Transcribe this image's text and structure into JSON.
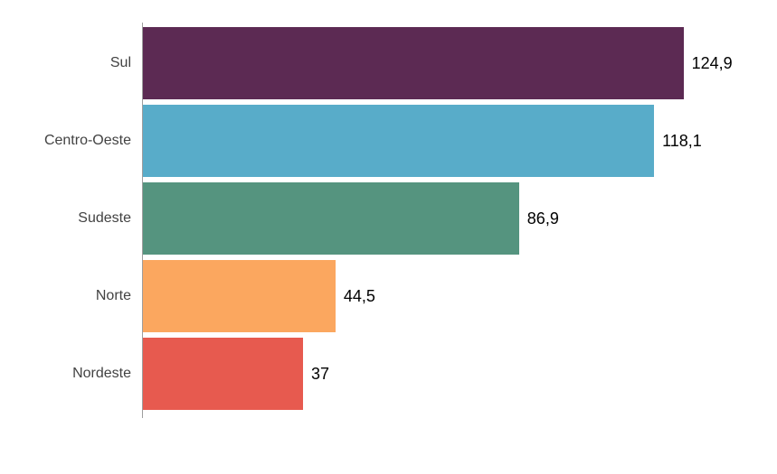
{
  "chart_data": {
    "type": "bar",
    "orientation": "horizontal",
    "title": "",
    "xlabel": "",
    "ylabel": "",
    "categories": [
      "Sul",
      "Centro-Oeste",
      "Sudeste",
      "Norte",
      "Nordeste"
    ],
    "values": [
      124.9,
      118.1,
      86.9,
      44.5,
      37
    ],
    "value_labels": [
      "124,9",
      "118,1",
      "86,9",
      "44,5",
      "37"
    ],
    "bar_colors": [
      "#5C2A53",
      "#58ACC9",
      "#55947F",
      "#FBA75F",
      "#E75A4F"
    ],
    "xlim": [
      0,
      146.5
    ],
    "grid": false,
    "legend_position": "none",
    "background_color": "#FFFFFF",
    "axis_line_color": "#9E9E9E",
    "category_label_color": "#424242",
    "value_label_color": "#000000"
  }
}
